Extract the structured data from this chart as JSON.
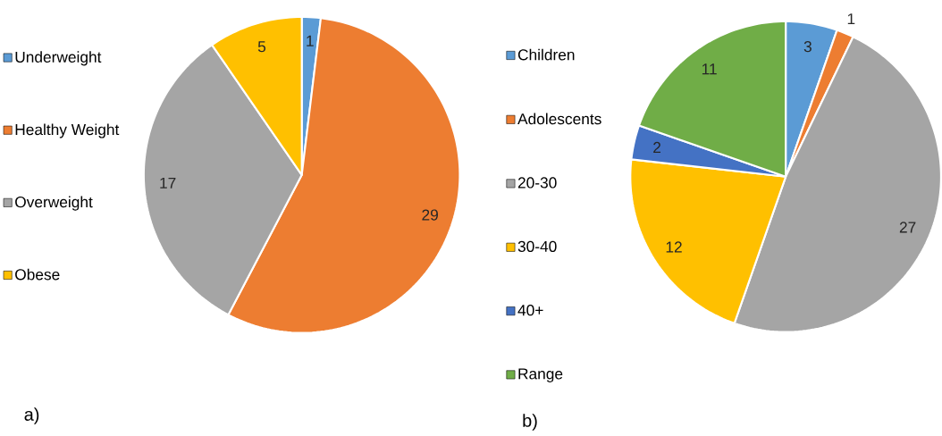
{
  "chart_data": [
    {
      "type": "pie",
      "categories": [
        "Underweight",
        "Healthy Weight",
        "Overweight",
        "Obese"
      ],
      "values": [
        1,
        29,
        17,
        5
      ],
      "colors": [
        "#5b9bd5",
        "#ed7d31",
        "#a5a5a5",
        "#ffc000"
      ],
      "data_labels": true,
      "legend": "left",
      "annotations": [
        "a)"
      ]
    },
    {
      "type": "pie",
      "categories": [
        "Children",
        "Adolescents",
        "20-30",
        "30-40",
        "40+",
        "Range"
      ],
      "values": [
        3,
        1,
        27,
        12,
        2,
        11
      ],
      "colors": [
        "#5b9bd5",
        "#ed7d31",
        "#a5a5a5",
        "#ffc000",
        "#4472c4",
        "#70ad47"
      ],
      "data_labels": true,
      "legend": "left",
      "annotations": [
        "b)"
      ]
    }
  ]
}
